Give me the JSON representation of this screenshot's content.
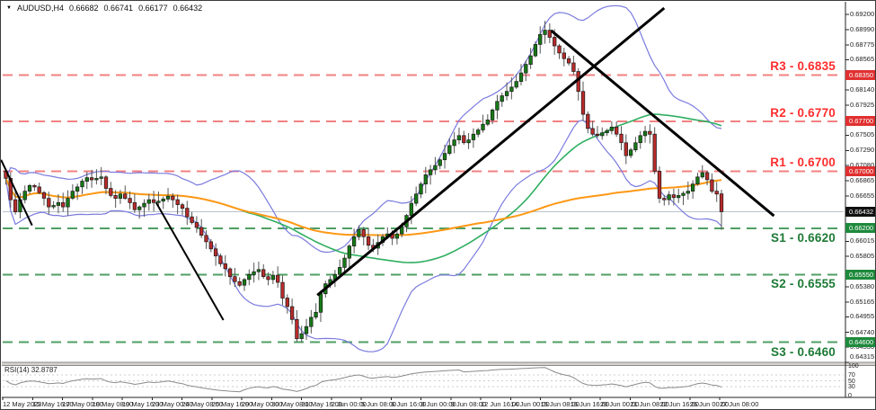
{
  "window": {
    "marker": "▼",
    "symbol": "AUDUSD,H4",
    "open": "0.66682",
    "high": "0.66741",
    "low": "0.66177",
    "close": "0.66432"
  },
  "chart_data": {
    "type": "candlestick",
    "symbol": "AUDUSD",
    "timeframe": "H4",
    "last_quote": {
      "open": 0.66682,
      "high": 0.66741,
      "low": 0.66177,
      "close": 0.66432
    },
    "first_open": 0.67,
    "closes": [
      0.669,
      0.666,
      0.6643,
      0.666,
      0.6672,
      0.668,
      0.6678,
      0.667,
      0.6662,
      0.665,
      0.6652,
      0.6656,
      0.665,
      0.6662,
      0.6672,
      0.6678,
      0.6686,
      0.6691,
      0.6688,
      0.669,
      0.6692,
      0.6676,
      0.6666,
      0.6662,
      0.6668,
      0.6662,
      0.6656,
      0.6646,
      0.665,
      0.6655,
      0.666,
      0.6656,
      0.6658,
      0.6661,
      0.6665,
      0.666,
      0.6653,
      0.6648,
      0.6636,
      0.6628,
      0.6621,
      0.661,
      0.6601,
      0.6591,
      0.6581,
      0.657,
      0.6563,
      0.6552,
      0.6545,
      0.654,
      0.6548,
      0.6555,
      0.6559,
      0.6562,
      0.6552,
      0.6548,
      0.6554,
      0.6544,
      0.6522,
      0.651,
      0.6492,
      0.6465,
      0.6472,
      0.6482,
      0.6495,
      0.6502,
      0.6528,
      0.6542,
      0.6548,
      0.6555,
      0.6565,
      0.6578,
      0.6595,
      0.6608,
      0.6618,
      0.6608,
      0.6596,
      0.6592,
      0.66,
      0.6608,
      0.6612,
      0.6606,
      0.6612,
      0.6622,
      0.6638,
      0.6655,
      0.6668,
      0.6682,
      0.6695,
      0.6702,
      0.6708,
      0.6716,
      0.6725,
      0.6736,
      0.6744,
      0.675,
      0.674,
      0.6744,
      0.6752,
      0.6758,
      0.6766,
      0.6772,
      0.6786,
      0.6798,
      0.6806,
      0.6812,
      0.6818,
      0.6826,
      0.6838,
      0.685,
      0.6862,
      0.6878,
      0.6892,
      0.6898,
      0.6888,
      0.6876,
      0.6866,
      0.6858,
      0.6852,
      0.684,
      0.6812,
      0.678,
      0.676,
      0.6752,
      0.675,
      0.6754,
      0.6757,
      0.6762,
      0.6752,
      0.674,
      0.6722,
      0.673,
      0.674,
      0.675,
      0.6756,
      0.6752,
      0.67,
      0.6662,
      0.666,
      0.6667,
      0.6663,
      0.6666,
      0.6669,
      0.6672,
      0.6682,
      0.6692,
      0.6698,
      0.6688,
      0.6672,
      0.6668,
      0.66432
    ],
    "y_domain": {
      "max": 0.6929,
      "min": 0.6433
    },
    "y_axis_ticks": [
      "0.69200",
      "0.68990",
      "0.68775",
      "0.68565",
      "0.68140",
      "0.67925",
      "0.67505",
      "0.67290",
      "0.67080",
      "0.66865",
      "0.66655",
      "0.66015",
      "0.65805",
      "0.65380",
      "0.65165",
      "0.64955",
      "0.64740",
      "0.64530",
      "0.64315"
    ],
    "y_axis_badges": [
      {
        "text": "0.68350",
        "price": 0.6835,
        "kind": "resistance"
      },
      {
        "text": "0.67700",
        "price": 0.677,
        "kind": "resistance"
      },
      {
        "text": "0.67000",
        "price": 0.67,
        "kind": "resistance"
      },
      {
        "text": "0.66432",
        "price": 0.66432,
        "kind": "current"
      },
      {
        "text": "0.66200",
        "price": 0.662,
        "kind": "support"
      },
      {
        "text": "0.65550",
        "price": 0.6555,
        "kind": "support"
      },
      {
        "text": "0.64600",
        "price": 0.646,
        "kind": "support"
      }
    ],
    "x_axis_labels": [
      "12 May 2023",
      "15 May 16:00",
      "17 May 00:00",
      "18 May 08:00",
      "19 May 16:00",
      "23 May 00:00",
      "24 May 08:00",
      "25 May 16:00",
      "29 May 00:00",
      "30 May 08:00",
      "31 May 16:00",
      "2 Jun 00:00",
      "5 Jun 08:00",
      "6 Jun 16:00",
      "8 Jun 00:00",
      "9 Jun 08:00",
      "12 Jun 16:00",
      "14 Jun 00:00",
      "15 Jun 08:00",
      "16 Jun 16:00",
      "20 Jun 00:00",
      "21 Jun 08:00",
      "22 Jun 16:00",
      "26 Jun 00:00",
      "27 Jun 08:00"
    ],
    "levels": {
      "resistance": [
        {
          "id": "R3",
          "label": "R3 - 0.6835",
          "price": 0.6835
        },
        {
          "id": "R2",
          "label": "R2 - 0.6770",
          "price": 0.677
        },
        {
          "id": "R1",
          "label": "R1 - 0.6700",
          "price": 0.67
        }
      ],
      "support": [
        {
          "id": "S1",
          "label": "S1 - 0.6620",
          "price": 0.662
        },
        {
          "id": "S2",
          "label": "S2 - 0.6555",
          "price": 0.6555
        },
        {
          "id": "S3",
          "label": "S3 - 0.6460",
          "price": 0.646
        }
      ]
    },
    "current_price": 0.66432,
    "trendlines": [
      {
        "x1_bar": -1,
        "p1": 0.6716,
        "x2_bar": 5.5,
        "p2": 0.6624,
        "width": 2
      },
      {
        "x1_bar": 31.5,
        "p1": 0.6656,
        "x2_bar": 45.6,
        "p2": 0.6491,
        "width": 2
      },
      {
        "x1_bar": 65.3,
        "p1": 0.6526,
        "x2_bar": 138,
        "p2": 0.6929,
        "width": 3
      },
      {
        "x1_bar": 114.3,
        "p1": 0.68975,
        "x2_bar": 161,
        "p2": 0.66374,
        "width": 3
      }
    ],
    "indicators": {
      "bollinger": {
        "period": 20,
        "deviation": 2
      },
      "ma_fast": {
        "period": 50
      },
      "ma_slow": {
        "period": 100
      },
      "rsi": {
        "label": "RSI(14)",
        "period": 14,
        "current": "32.8787",
        "scale_labels": [
          "100",
          "70",
          "50",
          "30",
          "0"
        ],
        "guides": [
          70,
          50,
          30
        ]
      }
    },
    "colors": {
      "bull": "#157a15",
      "bear": "#b92b2b",
      "wick": "#555555",
      "bollinger": "#7b7bdf",
      "ma_fast": "#2fae60",
      "ma_slow": "#ff9815",
      "resistance_line": "#f28080",
      "resistance_text": "#ff2d2d",
      "support_line": "#4f9f63",
      "support_text": "#1d7a35",
      "trendline": "#000000",
      "rsi_line": "#8a8a8a",
      "current_price_line": "#b9c2cc",
      "badge_current_bg": "#111111",
      "badge_resistance_bg": "#e03030",
      "badge_support_bg": "#1e8a3c"
    }
  }
}
